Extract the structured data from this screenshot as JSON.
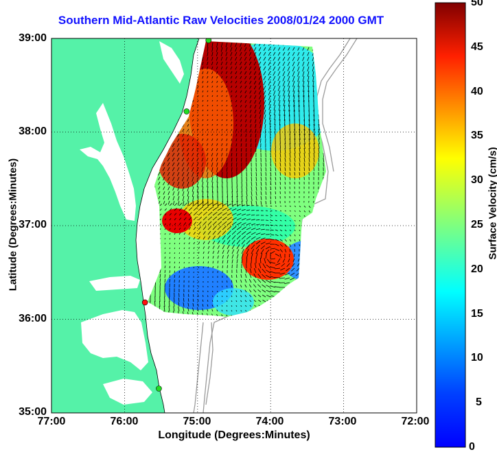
{
  "title": "Southern Mid-Atlantic Raw Velocities 2008/01/24 2000 GMT",
  "axes": {
    "xlabel": "Longitude (Degrees:Minutes)",
    "ylabel": "Latitude (Degrees:Minutes)",
    "x_ticks": [
      "77:00",
      "76:00",
      "75:00",
      "74:00",
      "73:00",
      "72:00"
    ],
    "y_ticks": [
      "39:00",
      "38:00",
      "37:00",
      "36:00",
      "35:00"
    ],
    "x_range_deg_west": [
      77,
      72
    ],
    "y_range_deg_north": [
      35,
      39
    ],
    "grid": "dotted"
  },
  "colorbar": {
    "label": "Surface Velocity (cm/s)",
    "ticks": [
      "50",
      "45",
      "40",
      "35",
      "30",
      "25",
      "20",
      "15",
      "10",
      "5",
      "0"
    ],
    "range": [
      0,
      50
    ],
    "colormap": "jet"
  },
  "colors": {
    "land": "#55f2a8",
    "water": "#ffffff",
    "bathymetry": "#9a9a9a",
    "title": "#1010ff",
    "station_green": "#22dd22",
    "station_red": "#ff1010"
  },
  "stations": [
    {
      "name": "north-station",
      "lon": -74.85,
      "lat": 38.98,
      "status": "green"
    },
    {
      "name": "mid-station",
      "lon": -75.15,
      "lat": 38.22,
      "status": "green"
    },
    {
      "name": "south-station-red",
      "lon": -75.72,
      "lat": 36.18,
      "status": "red"
    },
    {
      "name": "far-south-station",
      "lon": -75.53,
      "lat": 35.26,
      "status": "green"
    }
  ]
}
